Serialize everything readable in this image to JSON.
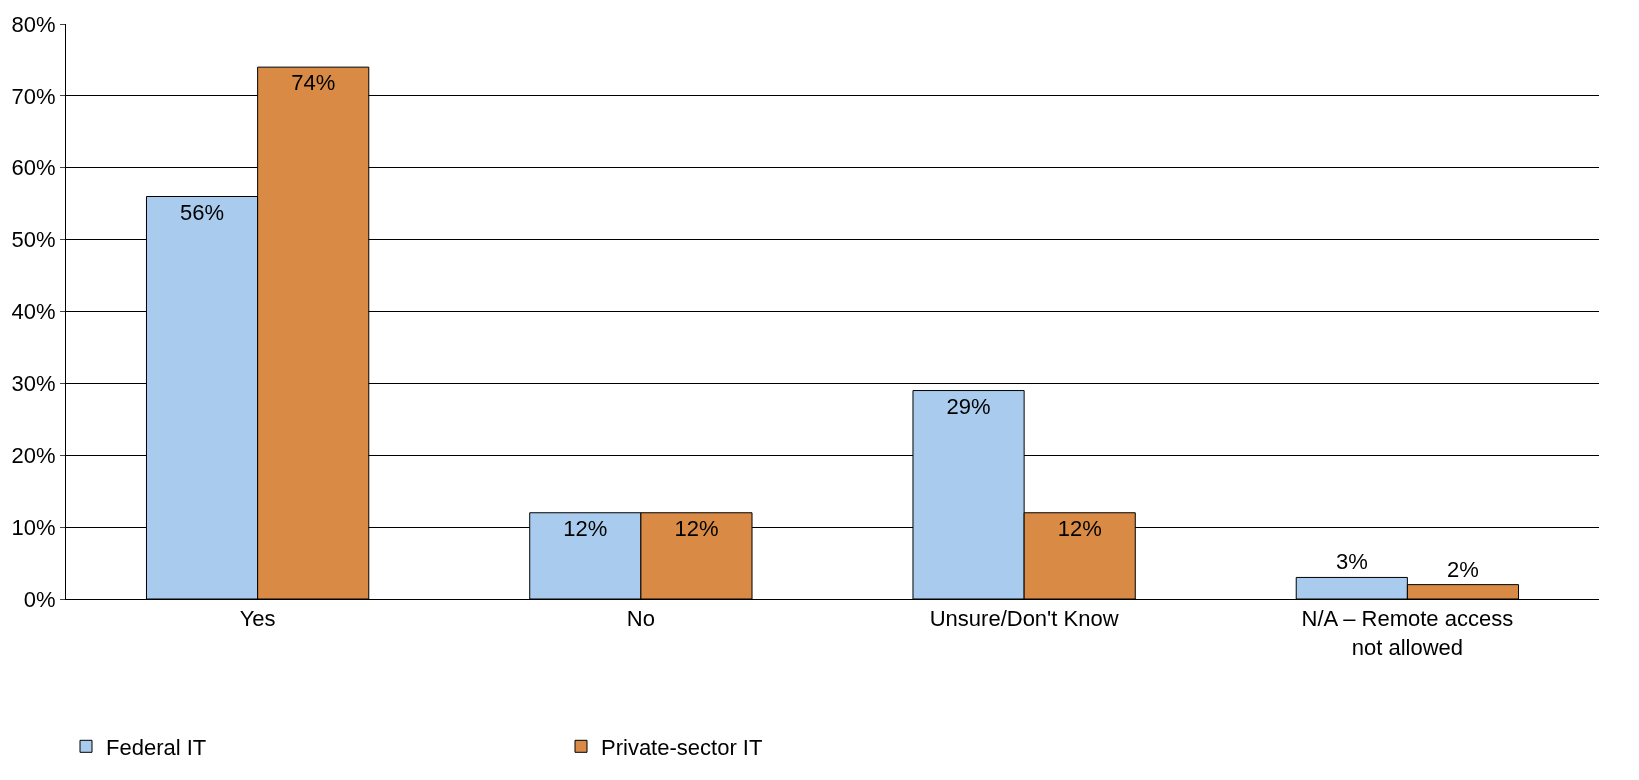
{
  "chart_data": {
    "type": "bar",
    "categories": [
      "Yes",
      "No",
      "Unsure/Don't Know",
      "N/A – Remote access not allowed"
    ],
    "series": [
      {
        "name": "Federal IT",
        "color": "#a9ccee",
        "values": [
          56,
          12,
          29,
          3
        ],
        "value_labels": [
          "56%",
          "12%",
          "29%",
          "3%"
        ]
      },
      {
        "name": "Private-sector IT",
        "color": "#d98a45",
        "values": [
          74,
          12,
          12,
          2
        ],
        "value_labels": [
          "74%",
          "12%",
          "12%",
          "2%"
        ]
      }
    ],
    "ylim": [
      0,
      80
    ],
    "yticks": [
      {
        "value": 0,
        "label": "0%"
      },
      {
        "value": 10,
        "label": "10%"
      },
      {
        "value": 20,
        "label": "20%"
      },
      {
        "value": 30,
        "label": "30%"
      },
      {
        "value": 40,
        "label": "40%"
      },
      {
        "value": 50,
        "label": "50%"
      },
      {
        "value": 60,
        "label": "60%"
      },
      {
        "value": 70,
        "label": "70%"
      },
      {
        "value": 80,
        "label": "80%"
      }
    ],
    "grid": "y",
    "legend": "bottom left"
  }
}
